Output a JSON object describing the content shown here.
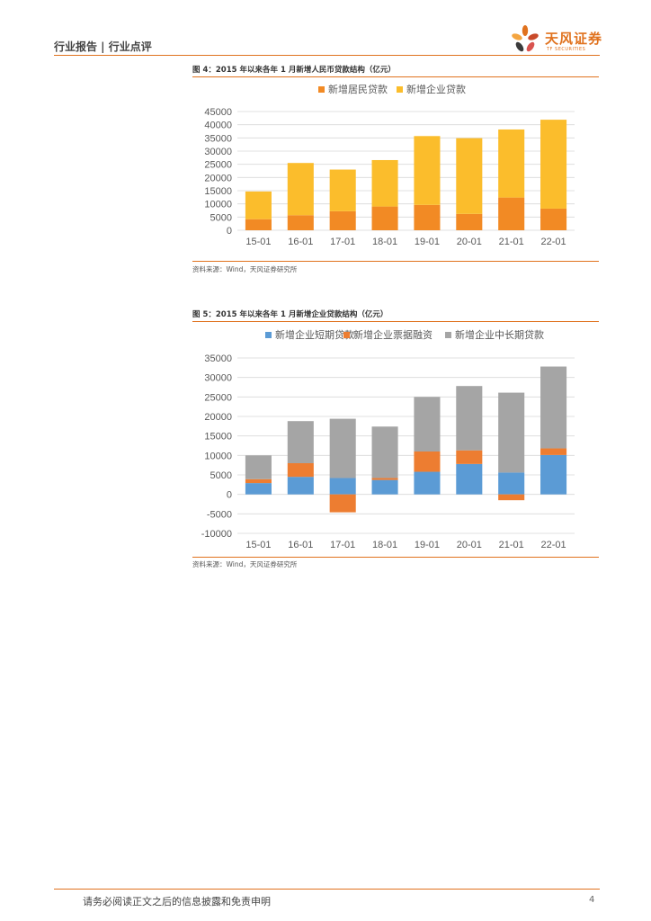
{
  "header": {
    "left_label": "行业报告 | 行业点评",
    "logo_text": "天风证券",
    "logo_sub": "TF SECURITIES"
  },
  "figure4": {
    "title": "图 4：2015 年以来各年 1 月新增人民币贷款结构（亿元）",
    "source": "资料来源：Wind，天风证券研究所",
    "colors": {
      "resident": "#f28a24",
      "enterprise": "#fbbd2c"
    }
  },
  "figure5": {
    "title": "图 5：2015 年以来各年 1 月新增企业贷款结构（亿元）",
    "source": "资料来源：Wind，天风证券研究所",
    "colors": {
      "short": "#5b9bd5",
      "bill": "#ed7d31",
      "long": "#a5a5a5"
    }
  },
  "chart_data": [
    {
      "type": "bar",
      "stacked": true,
      "categories": [
        "15-01",
        "16-01",
        "17-01",
        "18-01",
        "19-01",
        "20-01",
        "21-01",
        "22-01"
      ],
      "series": [
        {
          "name": "新增居民贷款",
          "values": [
            4200,
            5700,
            7200,
            9000,
            9600,
            6200,
            12400,
            8200
          ]
        },
        {
          "name": "新增企业贷款",
          "values": [
            10500,
            19800,
            15800,
            17600,
            26100,
            28700,
            25800,
            33700
          ]
        }
      ],
      "ylim": [
        0,
        45000
      ],
      "yticks": [
        "0",
        "5000",
        "10000",
        "15000",
        "20000",
        "25000",
        "30000",
        "35000",
        "40000",
        "45000"
      ],
      "legend": "top",
      "grid": true
    },
    {
      "type": "bar",
      "stacked": true,
      "categories": [
        "15-01",
        "16-01",
        "17-01",
        "18-01",
        "19-01",
        "20-01",
        "21-01",
        "22-01"
      ],
      "series": [
        {
          "name": "新增企业短期贷款",
          "values": [
            2900,
            4500,
            4200,
            3700,
            5800,
            7800,
            5600,
            10100
          ]
        },
        {
          "name": "新增企业票据融资",
          "values": [
            1000,
            3500,
            -4600,
            500,
            5200,
            3500,
            -1500,
            1700
          ]
        },
        {
          "name": "新增企业中长期贷款",
          "values": [
            6100,
            10800,
            15200,
            13200,
            14000,
            16500,
            20500,
            21000
          ]
        }
      ],
      "ylim": [
        -10000,
        35000
      ],
      "yticks": [
        "-10000",
        "-5000",
        "0",
        "5000",
        "10000",
        "15000",
        "20000",
        "25000",
        "30000",
        "35000"
      ],
      "legend": "top",
      "grid": true
    }
  ],
  "footer": {
    "disclaimer": "请务必阅读正文之后的信息披露和免责申明",
    "page": "4"
  }
}
